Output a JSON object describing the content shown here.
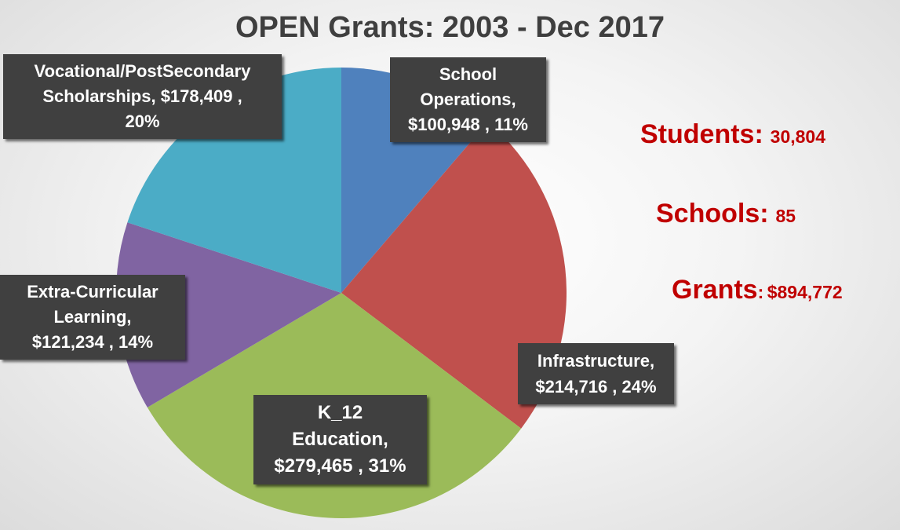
{
  "chart_data": {
    "type": "pie",
    "title": "OPEN Grants: 2003 - Dec 2017",
    "slices": [
      {
        "label": "School Operations,",
        "value": 100948,
        "value_text": "$100,948",
        "percent": 11,
        "color": "#4f81bd"
      },
      {
        "label": "Infrastructure,",
        "value": 214716,
        "value_text": "$214,716",
        "percent": 24,
        "color": "#c0504d"
      },
      {
        "label": "K_12 Education,",
        "value": 279465,
        "value_text": "$279,465",
        "percent": 31,
        "color": "#9bbb59"
      },
      {
        "label": "Extra-Curricular Learning,",
        "value": 121234,
        "value_text": "$121,234",
        "percent": 14,
        "color": "#8064a2"
      },
      {
        "label": "Vocational/PostSecondary Scholarships,",
        "value": 178409,
        "value_text": "$178,409",
        "percent": 20,
        "color": "#4bacc6"
      }
    ],
    "data_labels": [
      {
        "line1": "School",
        "line2": "Operations,",
        "line3": "$100,948 , 11%"
      },
      {
        "line1": "Infrastructure,",
        "line2": "$214,716 , 24%"
      },
      {
        "line1": "K_12",
        "line2": "Education,",
        "line3": "$279,465 , 31%"
      },
      {
        "line1": "Extra-Curricular",
        "line2": "Learning,",
        "line3": "$121,234 , 14%"
      },
      {
        "line1": "Vocational/PostSecondary",
        "line2": "Scholarships,  $178,409 ,",
        "line3": "20%"
      }
    ],
    "legend": "none"
  },
  "stats": {
    "students_label": "Students:",
    "students_value": "30,804",
    "schools_label": "Schools:",
    "schools_value": "85",
    "grants_label": "Grants",
    "grants_colon": ":",
    "grants_value": "$894,772"
  }
}
